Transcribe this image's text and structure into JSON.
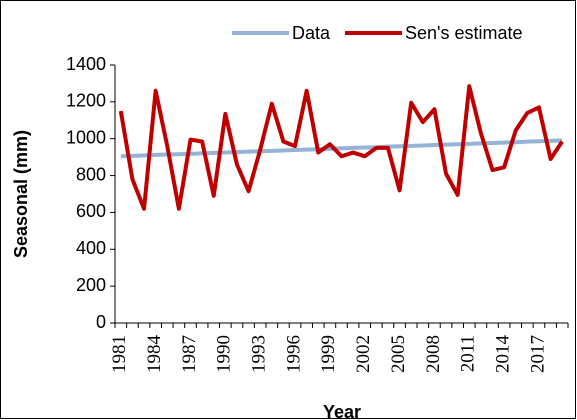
{
  "chart_data": {
    "type": "line",
    "xlabel": "Year",
    "ylabel": "Seasonal (mm)",
    "categories": [
      "1981",
      null,
      null,
      "1984",
      null,
      null,
      "1987",
      null,
      null,
      "1990",
      null,
      null,
      "1993",
      null,
      null,
      "1996",
      null,
      null,
      "1999",
      null,
      null,
      "2002",
      null,
      null,
      "2005",
      null,
      null,
      "2008",
      null,
      null,
      "2011",
      null,
      null,
      "2014",
      null,
      null,
      "2017",
      null,
      null
    ],
    "series": [
      {
        "name": "Data",
        "color": "#95b3d7",
        "values": [
          905,
          907,
          909,
          912,
          914,
          916,
          918,
          921,
          923,
          925,
          927,
          930,
          932,
          934,
          936,
          939,
          941,
          943,
          945,
          948,
          950,
          952,
          954,
          957,
          959,
          961,
          963,
          966,
          968,
          970,
          972,
          975,
          977,
          979,
          981,
          984,
          986,
          988,
          990
        ]
      },
      {
        "name": "Sen's estimate",
        "color": "#c00000",
        "values": [
          1150,
          780,
          620,
          1260,
          960,
          620,
          995,
          985,
          690,
          1135,
          860,
          715,
          940,
          1190,
          985,
          960,
          1260,
          925,
          970,
          905,
          925,
          905,
          950,
          950,
          720,
          1195,
          1090,
          1160,
          810,
          695,
          1285,
          1030,
          830,
          845,
          1045,
          1140,
          1170,
          890,
          985
        ]
      }
    ],
    "ylim": [
      0,
      1400
    ],
    "yticks": [
      0,
      200,
      400,
      600,
      800,
      1000,
      1200,
      1400
    ],
    "legend": "top"
  }
}
